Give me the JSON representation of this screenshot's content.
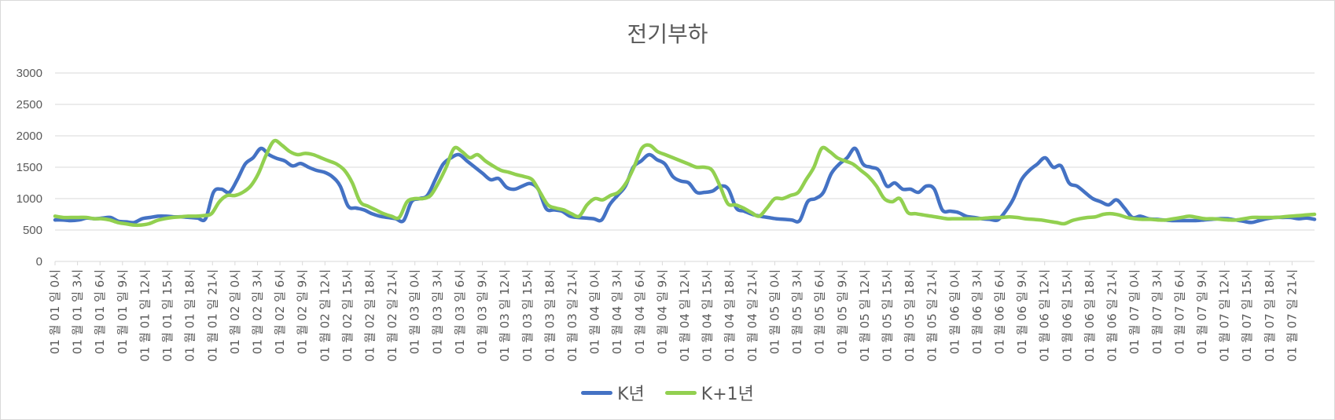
{
  "chart_data": {
    "type": "line",
    "title": "전기부하",
    "xlabel": "",
    "ylabel": "",
    "ylim": [
      0,
      3000
    ],
    "yticks": [
      0,
      500,
      1000,
      1500,
      2000,
      2500,
      3000
    ],
    "grid": true,
    "legend_position": "bottom",
    "x_tick_labels": [
      "01 월 01 일 0시",
      "01 월 01 일 3시",
      "01 월 01 일 6시",
      "01 월 01 일 9시",
      "01 월 01 일 12시",
      "01 월 01 일 15시",
      "01 월 01 일 18시",
      "01 월 01 일 21시",
      "01 월 02 일 0시",
      "01 월 02 일 3시",
      "01 월 02 일 6시",
      "01 월 02 일 9시",
      "01 월 02 일 12시",
      "01 월 02 일 15시",
      "01 월 02 일 18시",
      "01 월 02 일 21시",
      "01 월 03 일 0시",
      "01 월 03 일 3시",
      "01 월 03 일 6시",
      "01 월 03 일 9시",
      "01 월 03 일 12시",
      "01 월 03 일 15시",
      "01 월 03 일 18시",
      "01 월 03 일 21시",
      "01 월 04 일 0시",
      "01 월 04 일 3시",
      "01 월 04 일 6시",
      "01 월 04 일 9시",
      "01 월 04 일 12시",
      "01 월 04 일 15시",
      "01 월 04 일 18시",
      "01 월 04 일 21시",
      "01 월 05 일 0시",
      "01 월 05 일 3시",
      "01 월 05 일 6시",
      "01 월 05 일 9시",
      "01 월 05 일 12시",
      "01 월 05 일 15시",
      "01 월 05 일 18시",
      "01 월 05 일 21시",
      "01 월 06 일 0시",
      "01 월 06 일 3시",
      "01 월 06 일 6시",
      "01 월 06 일 9시",
      "01 월 06 일 12시",
      "01 월 06 일 15시",
      "01 월 06 일 18시",
      "01 월 06 일 21시",
      "01 월 07 일 0시",
      "01 월 07 일 3시",
      "01 월 07 일 6시",
      "01 월 07 일 9시",
      "01 월 07 일 12시",
      "01 월 07 일 15시",
      "01 월 07 일 18시",
      "01 월 07 일 21시"
    ],
    "series": [
      {
        "name": "K년",
        "color": "#4472C4",
        "values": [
          660,
          660,
          650,
          660,
          690,
          680,
          690,
          700,
          640,
          630,
          620,
          680,
          700,
          720,
          720,
          710,
          710,
          700,
          690,
          680,
          1100,
          1150,
          1100,
          1300,
          1550,
          1650,
          1800,
          1700,
          1640,
          1600,
          1520,
          1560,
          1500,
          1450,
          1420,
          1350,
          1200,
          880,
          850,
          820,
          760,
          720,
          700,
          680,
          650,
          950,
          1000,
          1050,
          1300,
          1550,
          1650,
          1700,
          1600,
          1500,
          1400,
          1300,
          1320,
          1180,
          1150,
          1200,
          1240,
          1150,
          840,
          820,
          800,
          720,
          700,
          690,
          680,
          660,
          900,
          1050,
          1200,
          1500,
          1600,
          1700,
          1620,
          1550,
          1350,
          1280,
          1250,
          1100,
          1100,
          1120,
          1200,
          1150,
          850,
          800,
          750,
          720,
          700,
          680,
          670,
          660,
          650,
          950,
          1000,
          1100,
          1400,
          1550,
          1650,
          1800,
          1550,
          1500,
          1450,
          1200,
          1250,
          1150,
          1150,
          1100,
          1200,
          1150,
          820,
          800,
          780,
          720,
          700,
          680,
          670,
          660,
          800,
          1000,
          1300,
          1450,
          1550,
          1650,
          1500,
          1520,
          1250,
          1200,
          1100,
          1000,
          950,
          900,
          980,
          850,
          700,
          720,
          680,
          670,
          660,
          650,
          650,
          650,
          650,
          660,
          670,
          680,
          680,
          660,
          640,
          620,
          650,
          680,
          700,
          700,
          700,
          680,
          690,
          670
        ]
      },
      {
        "name": "K+1년",
        "color": "#92D050",
        "values": [
          720,
          700,
          700,
          700,
          700,
          680,
          680,
          660,
          620,
          600,
          580,
          580,
          600,
          650,
          680,
          700,
          710,
          720,
          720,
          730,
          760,
          950,
          1050,
          1050,
          1100,
          1200,
          1400,
          1700,
          1920,
          1850,
          1750,
          1700,
          1720,
          1700,
          1650,
          1600,
          1550,
          1450,
          1250,
          950,
          880,
          820,
          760,
          720,
          700,
          950,
          1000,
          1000,
          1050,
          1250,
          1500,
          1800,
          1750,
          1650,
          1700,
          1600,
          1520,
          1450,
          1420,
          1380,
          1350,
          1300,
          1100,
          900,
          850,
          820,
          760,
          720,
          900,
          1000,
          980,
          1050,
          1100,
          1250,
          1500,
          1800,
          1850,
          1750,
          1700,
          1650,
          1600,
          1550,
          1500,
          1500,
          1450,
          1200,
          920,
          900,
          850,
          780,
          720,
          850,
          1000,
          1000,
          1050,
          1100,
          1300,
          1500,
          1800,
          1750,
          1650,
          1600,
          1550,
          1450,
          1350,
          1200,
          1000,
          950,
          1000,
          780,
          760,
          740,
          720,
          700,
          680,
          680,
          680,
          680,
          680,
          690,
          700,
          700,
          710,
          700,
          680,
          670,
          660,
          640,
          620,
          600,
          650,
          680,
          700,
          710,
          750,
          760,
          740,
          700,
          680,
          670,
          670,
          660,
          660,
          680,
          700,
          720,
          700,
          680,
          680,
          670,
          660,
          660,
          680,
          700,
          700,
          700,
          700,
          710,
          720,
          730,
          740,
          750
        ]
      }
    ]
  },
  "legend": {
    "k_label": "K년",
    "k1_label": "K+1년"
  }
}
